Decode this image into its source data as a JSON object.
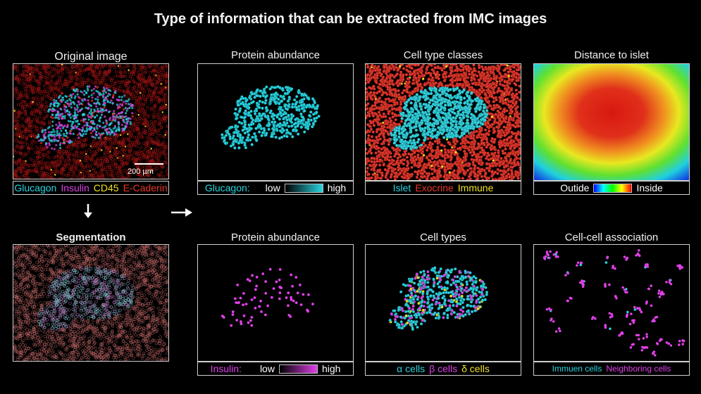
{
  "title": "Type of information that can be extracted from IMC images",
  "colors": {
    "cyan": "#29d4e0",
    "magenta": "#e040e8",
    "yellow": "#f0e020",
    "red": "#e8362a"
  },
  "panels": {
    "original": {
      "title": "Original image",
      "scale_bar": "200 µm",
      "legend": [
        "Glucagon",
        "Insulin",
        "CD45",
        "E-Caderin"
      ]
    },
    "glucagon": {
      "title": "Protein abundance",
      "legend_label": "Glucagon:",
      "low": "low",
      "high": "high"
    },
    "celltype_classes": {
      "title": "Cell type classes",
      "legend": [
        "Islet",
        "Exocrine",
        "Immune"
      ]
    },
    "distance": {
      "title": "Distance to islet",
      "low": "Outide",
      "high": "Inside"
    },
    "segmentation": {
      "title": "Segmentation"
    },
    "insulin": {
      "title": "Protein abundance",
      "legend_label": "Insulin:",
      "low": "low",
      "high": "high"
    },
    "celltypes": {
      "title": "Cell types",
      "legend": [
        "α cells",
        "β cells",
        "δ cells"
      ]
    },
    "association": {
      "title": "Cell-cell association",
      "legend": [
        "Immuen cells",
        "Neighboring cells"
      ]
    }
  },
  "arrows": {
    "down_icon": "arrow-down-icon",
    "right_icon": "arrow-right-icon"
  }
}
